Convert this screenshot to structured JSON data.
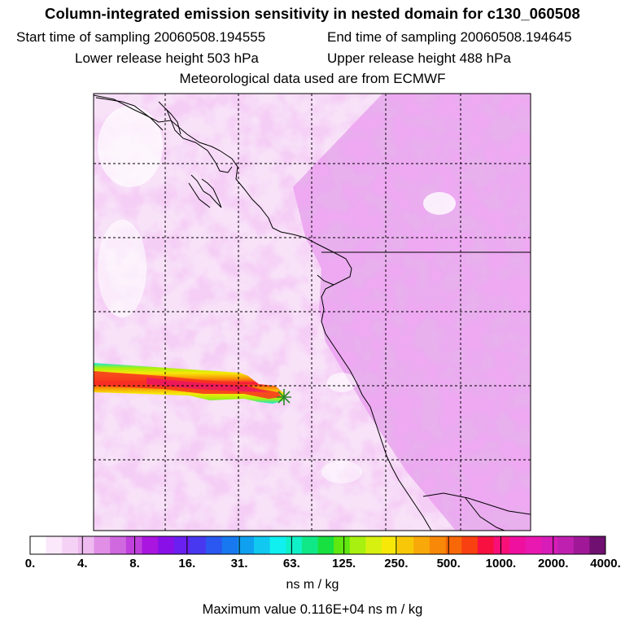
{
  "header": {
    "title": "Column-integrated emission sensitivity in nested domain for c130_060508",
    "start_label": "Start time of sampling 20060508.194555",
    "end_label": "End time of sampling 20060508.194645",
    "lower_label": "Lower release height  503 hPa",
    "upper_label": "Upper release height  488 hPa",
    "met_label": "Meteorological data used are from ECMWF"
  },
  "colorbar": {
    "ticks": [
      "0.",
      "4.",
      "8.",
      "16.",
      "31.",
      "63.",
      "125.",
      "250.",
      "500.",
      "1000.",
      "2000.",
      "4000."
    ],
    "colors": [
      "#ffffff",
      "#fbe8fb",
      "#f5d2f5",
      "#eebaf0",
      "#e08ee6",
      "#d068e0",
      "#c040dd",
      "#aa16e0",
      "#8a10e8",
      "#6a20f0",
      "#4838f0",
      "#2a58f0",
      "#1878f0",
      "#10a0f0",
      "#10c8f0",
      "#10f0f0",
      "#10f0c8",
      "#10e888",
      "#18e040",
      "#60e810",
      "#a8f010",
      "#d8f010",
      "#f8e808",
      "#f8c808",
      "#f8a808",
      "#f88808",
      "#f86808",
      "#f84010",
      "#f81040",
      "#f81078",
      "#f010a0",
      "#e818b0",
      "#d81cb8",
      "#c020b0",
      "#a01898",
      "#701070"
    ],
    "units": "ns m / kg"
  },
  "footer": {
    "max_value": "Maximum value  0.116E+04 ns m / kg"
  },
  "map": {
    "colors": {
      "background": "#f8e2f8",
      "light": "#fdf3fd",
      "medium": "#eeb6f0",
      "strong": "#dd86e6",
      "coast": "#000000",
      "grid": "#000000",
      "marker": "#2a8a2a"
    }
  }
}
